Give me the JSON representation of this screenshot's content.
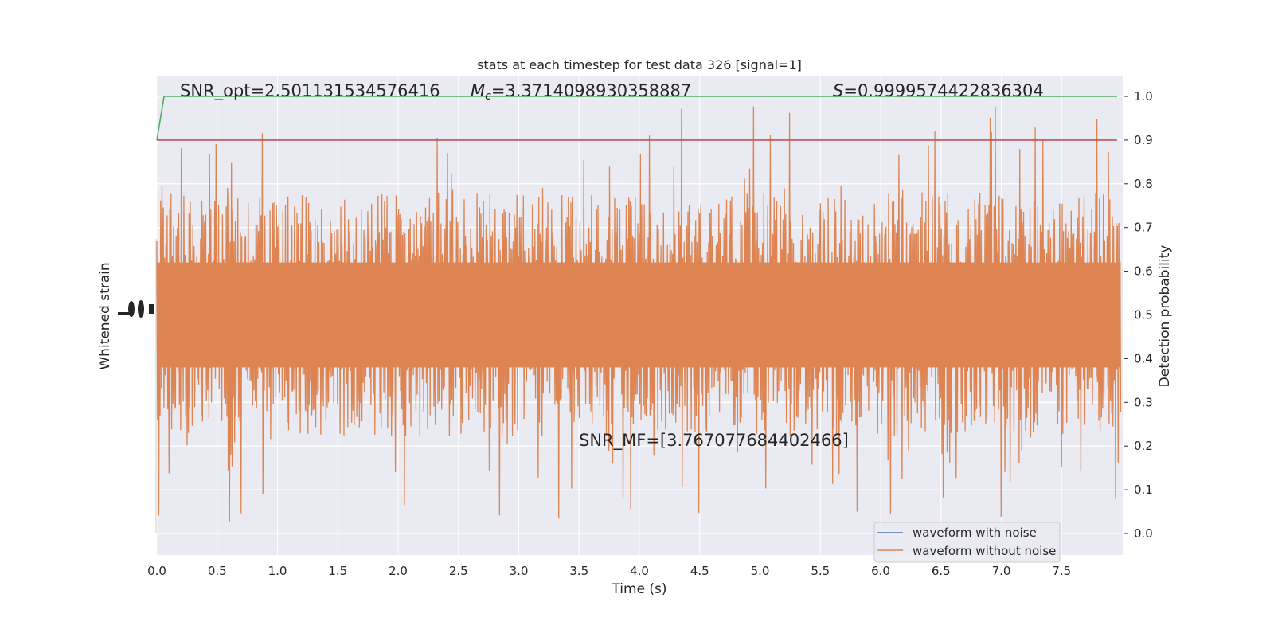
{
  "chart_data": {
    "type": "line",
    "title": "stats at each timestep for test data 326 [signal=1]",
    "xlabel": "Time (s)",
    "ylabel_left": "Whitened strain",
    "ylabel_right": "Detection probability",
    "xlim": [
      0.0,
      8.0
    ],
    "ylim_right": [
      -0.05,
      1.05
    ],
    "x_ticks": [
      "0.0",
      "0.5",
      "1.0",
      "1.5",
      "2.0",
      "2.5",
      "3.0",
      "3.5",
      "4.0",
      "4.5",
      "5.0",
      "5.5",
      "6.0",
      "6.5",
      "7.0",
      "7.5"
    ],
    "y_ticks_right": [
      "0.0",
      "0.1",
      "0.2",
      "0.3",
      "0.4",
      "0.5",
      "0.6",
      "0.7",
      "0.8",
      "0.9",
      "1.0"
    ],
    "grid": true,
    "legend_position": "lower-right",
    "legend": [
      {
        "name": "waveform with noise",
        "color": "#4c72b0"
      },
      {
        "name": "waveform without noise",
        "color": "#dd8452"
      }
    ],
    "colors": {
      "background": "#eaeaf2",
      "grid": "#ffffff",
      "noise_trace": "#dd8452",
      "probability_line": "#55a868",
      "threshold_line": "#c44e52"
    },
    "annotations": {
      "snr_opt": "SNR_opt=2.501131534576416",
      "mc_symbol": "M",
      "mc_subscript": "c",
      "mc_value": "=3.3714098930358887",
      "s_symbol": "S",
      "s_value": "=0.9999574422836304",
      "snr_mf": "SNR_MF=[3.767077684402466]"
    },
    "series": [
      {
        "name": "detection probability",
        "x": [
          0.0,
          0.06,
          7.96
        ],
        "y": [
          0.9,
          1.0,
          1.0
        ]
      },
      {
        "name": "threshold",
        "x": [
          0.0,
          7.96
        ],
        "y": [
          0.9,
          0.9
        ]
      },
      {
        "name": "waveform without noise",
        "x_range": [
          0.0,
          7.99
        ],
        "center": 0.5,
        "typical_range": [
          0.28,
          0.74
        ],
        "extreme_range": [
          0.0,
          1.0
        ]
      }
    ]
  }
}
